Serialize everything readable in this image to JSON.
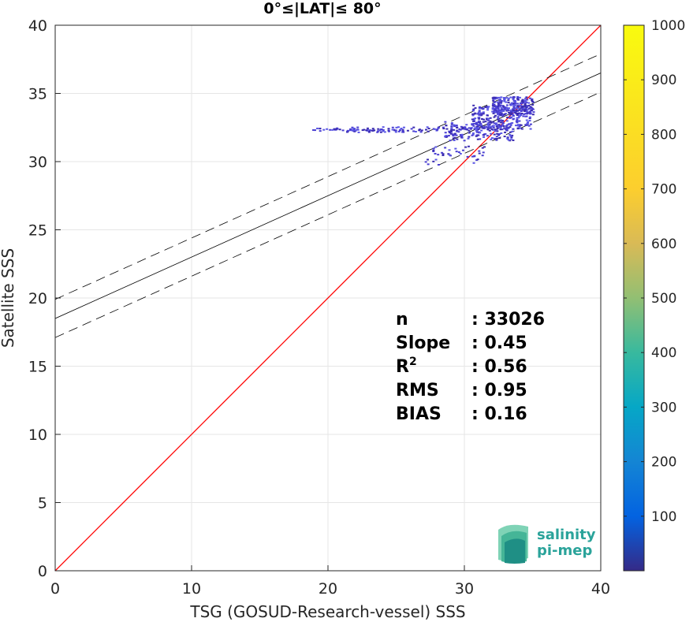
{
  "chart_data": {
    "type": "heatmap",
    "title": "0°≤|LAT|≤ 80°",
    "xlabel": "TSG (GOSUD-Research-vessel) SSS",
    "ylabel": "Satellite SSS",
    "xlim": [
      0,
      40
    ],
    "ylim": [
      0,
      40
    ],
    "x_ticks": [
      0,
      10,
      20,
      30,
      40
    ],
    "y_ticks": [
      0,
      5,
      10,
      15,
      20,
      25,
      30,
      35,
      40
    ],
    "grid": true,
    "identity_line": {
      "color": "#ff0000",
      "slope": 1,
      "intercept": 0
    },
    "regression_line": {
      "slope": 0.45,
      "intercept": 18.5,
      "color": "#000000"
    },
    "confidence_band": {
      "offset": 1.4,
      "style": "dashed",
      "color": "#000000"
    },
    "colorbar": {
      "min": 0,
      "max": 1000,
      "ticks": [
        100,
        200,
        300,
        400,
        500,
        600,
        700,
        800,
        900,
        1000
      ],
      "colormap": "parula"
    },
    "density_clusters": [
      {
        "x": [
          18.8,
          25.5
        ],
        "y": [
          32.3,
          32.5
        ],
        "count": 1
      },
      {
        "x": [
          20.5,
          30.5
        ],
        "y": [
          32.2,
          32.6
        ],
        "count": 2
      },
      {
        "x": [
          28.5,
          33.5
        ],
        "y": [
          31.6,
          33.0
        ],
        "count": 4
      },
      {
        "x": [
          30.5,
          34.8
        ],
        "y": [
          32.4,
          34.2
        ],
        "count": 6
      },
      {
        "x": [
          32.0,
          35.0
        ],
        "y": [
          33.5,
          34.8
        ],
        "count": 5
      },
      {
        "x": [
          27.0,
          31.5
        ],
        "y": [
          29.8,
          31.2
        ],
        "count": 1
      }
    ],
    "stats": [
      {
        "label": "n",
        "value": ": 33026"
      },
      {
        "label": "Slope",
        "value": ": 0.45"
      },
      {
        "label": "R",
        "sup": "2",
        "value": ": 0.56"
      },
      {
        "label": "RMS",
        "value": ": 0.95"
      },
      {
        "label": "BIAS",
        "value": ": 0.16"
      }
    ]
  },
  "logo": {
    "line1": "salinity",
    "line2": "pi-mep"
  },
  "colors": {
    "identity": "#ff0000",
    "point_dark": "#3a2bb0",
    "point_mid": "#4a3fd2",
    "point_light": "#5b57e6",
    "logo_teal": "#2aa39a"
  }
}
